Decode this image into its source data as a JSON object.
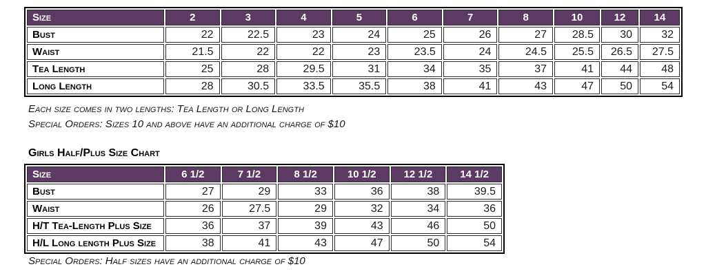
{
  "colors": {
    "header_bg": "#5d3a63",
    "header_text": "#ffffff",
    "outer_border": "#000000",
    "cell_border": "#2a2a2a"
  },
  "tables": [
    {
      "id": "standard",
      "header": [
        "Size",
        "2",
        "3",
        "4",
        "5",
        "6",
        "7",
        "8",
        "10",
        "12",
        "14"
      ],
      "rows": [
        {
          "label": "Bust",
          "values": [
            "22",
            "22.5",
            "23",
            "24",
            "25",
            "26",
            "27",
            "28.5",
            "30",
            "32"
          ]
        },
        {
          "label": "Waist",
          "values": [
            "21.5",
            "22",
            "22",
            "23",
            "23.5",
            "24",
            "24.5",
            "25.5",
            "26.5",
            "27.5"
          ]
        },
        {
          "label": "Tea Length",
          "values": [
            "25",
            "28",
            "29.5",
            "31",
            "34",
            "35",
            "37",
            "41",
            "44",
            "48"
          ]
        },
        {
          "label": "Long Length",
          "values": [
            "28",
            "30.5",
            "33.5",
            "35.5",
            "38",
            "41",
            "43",
            "47",
            "50",
            "54"
          ]
        }
      ]
    },
    {
      "id": "half-plus",
      "title": "Girls Half/Plus Size Chart",
      "header": [
        "Size",
        "6 1/2",
        "7 1/2",
        "8 1/2",
        "10 1/2",
        "12 1/2",
        "14 1/2"
      ],
      "rows": [
        {
          "label": "Bust",
          "values": [
            "27",
            "29",
            "33",
            "36",
            "38",
            "39.5"
          ]
        },
        {
          "label": "Waist",
          "values": [
            "26",
            "27.5",
            "29",
            "32",
            "34",
            "36"
          ]
        },
        {
          "label": "H/T Tea-Length Plus Size",
          "values": [
            "36",
            "37",
            "39",
            "43",
            "46",
            "50"
          ]
        },
        {
          "label": "H/L Long length Plus Size",
          "values": [
            "38",
            "41",
            "43",
            "47",
            "50",
            "54"
          ]
        }
      ]
    }
  ],
  "notes": {
    "two_lengths": "Each size comes in two lengths: Tea Length or Long Length",
    "special_orders_standard": "Special Orders: Sizes 10 and above have an additional charge of $10",
    "special_orders_half": "Special Orders: Half sizes have an additional charge of $10"
  }
}
